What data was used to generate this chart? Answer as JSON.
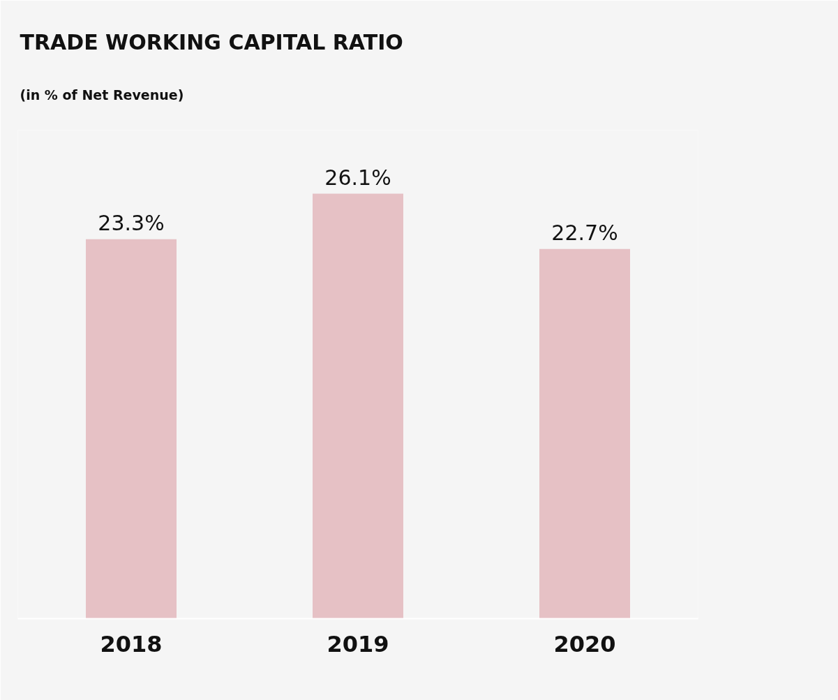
{
  "chart_data": {
    "type": "bar",
    "title": "TRADE WORKING CAPITAL RATIO",
    "subtitle": "(in % of Net Revenue)",
    "categories": [
      "2018",
      "2019",
      "2020"
    ],
    "values": [
      23.3,
      26.1,
      22.7
    ],
    "value_labels": [
      "23.3%",
      "26.1%",
      "22.7%"
    ],
    "color": "#e6c1c5",
    "ylim": [
      0,
      30
    ],
    "tick_labels": "x",
    "grid": false
  }
}
